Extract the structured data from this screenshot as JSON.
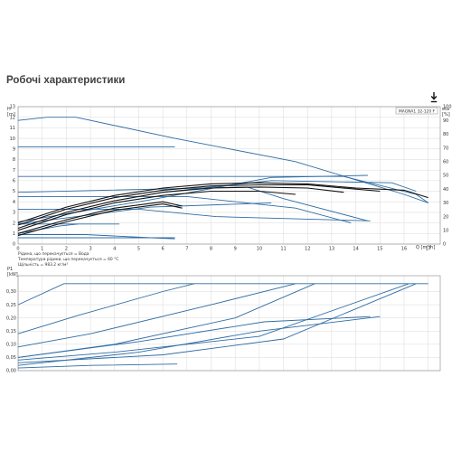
{
  "page": {
    "title": "Робочі характеристики",
    "download_icon": "download-arrow-icon"
  },
  "chart_data": [
    {
      "type": "line",
      "legend_label": "MAGNA1 32-120 F",
      "y_axis_left": {
        "unit": "H",
        "unit_line2": "[m]",
        "ylim": [
          0,
          13
        ],
        "ticks": [
          "0",
          "1",
          "2",
          "3",
          "4",
          "5",
          "6",
          "7",
          "8",
          "9",
          "10",
          "11",
          "12",
          "13"
        ]
      },
      "y_axis_right": {
        "unit": "eta",
        "unit_line2": "[%]",
        "ylim": [
          0,
          100
        ],
        "ticks": [
          "0",
          "10",
          "20",
          "30",
          "40",
          "50",
          "60",
          "70",
          "80",
          "90",
          "100"
        ]
      },
      "x_axis": {
        "label": "Q [m³/h]",
        "xlim": [
          0,
          17.5
        ],
        "ticks": [
          "0",
          "1",
          "2",
          "3",
          "4",
          "5",
          "6",
          "7",
          "8",
          "9",
          "10",
          "11",
          "12",
          "13",
          "14",
          "15",
          "16",
          "17"
        ]
      },
      "notes": [
        "Рідина, що перекачується = Вода",
        "Температура рідини, що перекачується = 60 °C",
        "Щільність = 983.2 кг/м³"
      ],
      "grid": true,
      "colors": {
        "blue": "#2e6ca4",
        "black": "#111111"
      },
      "series": [
        {
          "color": "blue",
          "x": [
            0,
            1.2,
            2.4,
            6.5,
            11.5,
            16,
            17
          ],
          "y": [
            11.7,
            12.0,
            12.0,
            10.0,
            7.8,
            4.7,
            3.9
          ]
        },
        {
          "color": "blue",
          "x": [
            0,
            6.5
          ],
          "y": [
            9.2,
            9.2
          ]
        },
        {
          "color": "blue",
          "x": [
            0,
            13.5,
            16.5,
            17
          ],
          "y": [
            6.4,
            6.4,
            4.7,
            3.9
          ]
        },
        {
          "color": "blue",
          "x": [
            0,
            9.5,
            11,
            14.5
          ],
          "y": [
            4.9,
            5.4,
            4.3,
            2.2
          ]
        },
        {
          "color": "blue",
          "x": [
            0,
            7,
            11.5,
            13.8
          ],
          "y": [
            4.5,
            4.5,
            3.4,
            2.0
          ]
        },
        {
          "color": "blue",
          "x": [
            0,
            5,
            8.2,
            14.6
          ],
          "y": [
            3.3,
            3.3,
            2.6,
            2.2
          ]
        },
        {
          "color": "blue",
          "x": [
            0,
            4.2
          ],
          "y": [
            1.9,
            1.9
          ]
        },
        {
          "color": "blue",
          "x": [
            0,
            5.5,
            10.5
          ],
          "y": [
            1.9,
            3.5,
            3.9
          ]
        },
        {
          "color": "blue",
          "x": [
            0,
            6.5
          ],
          "y": [
            0.6,
            0.6
          ]
        },
        {
          "color": "blue",
          "x": [
            0,
            2.8,
            5.5,
            6.5
          ],
          "y": [
            0.9,
            0.9,
            0.6,
            0.5
          ]
        },
        {
          "color": "blue",
          "x": [
            0,
            5.5,
            10.5,
            14.5
          ],
          "y": [
            2.1,
            4.2,
            6.3,
            6.5
          ]
        },
        {
          "color": "blue",
          "x": [
            6,
            10.5,
            15.5,
            16.5
          ],
          "y": [
            4.9,
            6.0,
            5.8,
            5.0
          ]
        },
        {
          "color": "blue",
          "x": [
            0,
            1.7,
            2.5
          ],
          "y": [
            1.0,
            1.7,
            1.9
          ]
        },
        {
          "color": "black",
          "x": [
            0,
            2,
            4,
            6,
            8,
            10,
            12,
            14,
            16,
            17
          ],
          "y": [
            2.0,
            3.5,
            4.6,
            5.3,
            5.7,
            5.8,
            5.7,
            5.3,
            5.1,
            4.4
          ]
        },
        {
          "color": "black",
          "x": [
            0,
            2,
            4,
            6,
            8,
            10,
            12,
            14,
            15
          ],
          "y": [
            1.8,
            3.3,
            4.4,
            5.1,
            5.5,
            5.6,
            5.6,
            5.2,
            5.0
          ]
        },
        {
          "color": "black",
          "x": [
            0,
            2,
            4,
            6,
            8,
            10,
            12,
            13.5
          ],
          "y": [
            1.5,
            3.0,
            4.1,
            4.9,
            5.3,
            5.4,
            5.3,
            4.9
          ]
        },
        {
          "color": "black",
          "x": [
            0,
            2,
            4,
            6,
            8,
            10,
            11.5
          ],
          "y": [
            1.3,
            2.8,
            3.9,
            4.6,
            5.0,
            5.0,
            4.7
          ]
        },
        {
          "color": "black",
          "x": [
            0,
            2,
            4,
            6,
            6.8
          ],
          "y": [
            1.0,
            2.3,
            3.4,
            4.0,
            3.6
          ]
        },
        {
          "color": "black",
          "x": [
            0,
            2,
            4,
            6,
            6.8
          ],
          "y": [
            0.8,
            2.1,
            3.2,
            3.8,
            3.4
          ]
        }
      ]
    },
    {
      "type": "line",
      "y_axis_left": {
        "unit": "P1",
        "unit_line2": "[kW]",
        "ylim": [
          0,
          0.36
        ],
        "ticks": [
          "0,00",
          "0,05",
          "0,10",
          "0,15",
          "0,20",
          "0,25",
          "0,30"
        ]
      },
      "x_axis": {
        "xlim": [
          0,
          17.5
        ]
      },
      "grid": true,
      "colors": {
        "blue": "#2e6ca4"
      },
      "series": [
        {
          "color": "blue",
          "x": [
            0,
            1.9,
            17
          ],
          "y": [
            0.25,
            0.33,
            0.33
          ]
        },
        {
          "color": "blue",
          "x": [
            0,
            2.5,
            6,
            7.3
          ],
          "y": [
            0.14,
            0.21,
            0.3,
            0.33
          ]
        },
        {
          "color": "blue",
          "x": [
            0,
            3,
            8,
            11.5
          ],
          "y": [
            0.09,
            0.14,
            0.25,
            0.33
          ]
        },
        {
          "color": "blue",
          "x": [
            0,
            4,
            9,
            12.3
          ],
          "y": [
            0.05,
            0.1,
            0.2,
            0.33
          ]
        },
        {
          "color": "blue",
          "x": [
            0,
            4,
            10,
            16.2
          ],
          "y": [
            0.04,
            0.07,
            0.13,
            0.33
          ]
        },
        {
          "color": "blue",
          "x": [
            0,
            6,
            11,
            16.5
          ],
          "y": [
            0.03,
            0.06,
            0.12,
            0.33
          ]
        },
        {
          "color": "blue",
          "x": [
            0,
            5,
            10,
            15
          ],
          "y": [
            0.02,
            0.07,
            0.15,
            0.205
          ]
        },
        {
          "color": "blue",
          "x": [
            0,
            5,
            10.2,
            14.6
          ],
          "y": [
            0.05,
            0.11,
            0.185,
            0.205
          ]
        },
        {
          "color": "blue",
          "x": [
            0,
            3,
            6.6
          ],
          "y": [
            0.01,
            0.02,
            0.025
          ]
        }
      ]
    }
  ]
}
